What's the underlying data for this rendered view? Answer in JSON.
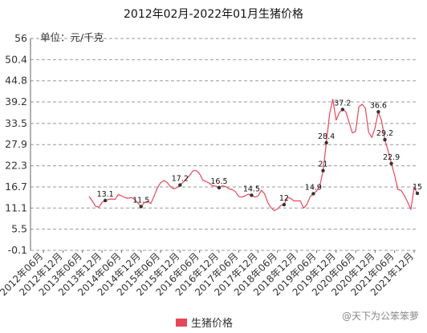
{
  "chart_data": {
    "type": "line",
    "title": "2012年02月-2022年01月生猪价格",
    "unit_label": "单位：元/千克",
    "legend_position": "bottom-center",
    "grid": true,
    "ylim": [
      -0.1,
      56
    ],
    "y_ticks": [
      "56",
      "50.4",
      "44.8",
      "39.2",
      "33.5",
      "27.9",
      "22.3",
      "16.7",
      "11.1",
      "5.5",
      "-0.1"
    ],
    "y_tick_values": [
      56,
      50.4,
      44.8,
      39.2,
      33.5,
      27.9,
      22.3,
      16.7,
      11.1,
      5.5,
      -0.1
    ],
    "x_range": [
      "2012-02",
      "2022-01"
    ],
    "x_ticks": [
      {
        "label": "2012年06月",
        "date": "2012-06"
      },
      {
        "label": "2012年12月",
        "date": "2012-12"
      },
      {
        "label": "2013年06月",
        "date": "2013-06"
      },
      {
        "label": "2013年12月",
        "date": "2013-12"
      },
      {
        "label": "2014年06月",
        "date": "2014-06"
      },
      {
        "label": "2014年12月",
        "date": "2014-12"
      },
      {
        "label": "2015年06月",
        "date": "2015-06"
      },
      {
        "label": "2015年12月",
        "date": "2015-12"
      },
      {
        "label": "2016年06月",
        "date": "2016-06"
      },
      {
        "label": "2016年12月",
        "date": "2016-12"
      },
      {
        "label": "2017年06月",
        "date": "2017-06"
      },
      {
        "label": "2017年12月",
        "date": "2017-12"
      },
      {
        "label": "2018年06月",
        "date": "2018-06"
      },
      {
        "label": "2018年12月",
        "date": "2018-12"
      },
      {
        "label": "2019年06月",
        "date": "2019-06"
      },
      {
        "label": "2019年12月",
        "date": "2019-12"
      },
      {
        "label": "2020年06月",
        "date": "2020-06"
      },
      {
        "label": "2020年12月",
        "date": "2020-12"
      },
      {
        "label": "2021年06月",
        "date": "2021-06"
      },
      {
        "label": "2021年12月",
        "date": "2021-12"
      }
    ],
    "series": [
      {
        "name": "生猪价格",
        "color": "#e8475a",
        "points": [
          [
            "2013-08",
            14.2
          ],
          [
            "2013-09",
            13.0
          ],
          [
            "2013-10",
            11.6
          ],
          [
            "2013-11",
            11.3
          ],
          [
            "2013-12",
            12.6
          ],
          [
            "2014-01",
            13.1
          ],
          [
            "2014-02",
            13.4
          ],
          [
            "2014-03",
            13.5
          ],
          [
            "2014-04",
            13.4
          ],
          [
            "2014-05",
            14.7
          ],
          [
            "2014-06",
            14.3
          ],
          [
            "2014-07",
            13.9
          ],
          [
            "2014-08",
            13.7
          ],
          [
            "2014-09",
            13.9
          ],
          [
            "2014-10",
            13.4
          ],
          [
            "2014-11",
            12.5
          ],
          [
            "2014-12",
            11.5
          ],
          [
            "2015-01",
            12.5
          ],
          [
            "2015-02",
            12.9
          ],
          [
            "2015-03",
            12.3
          ],
          [
            "2015-04",
            14.2
          ],
          [
            "2015-05",
            16.4
          ],
          [
            "2015-06",
            17.8
          ],
          [
            "2015-07",
            18.4
          ],
          [
            "2015-08",
            17.9
          ],
          [
            "2015-09",
            16.8
          ],
          [
            "2015-10",
            16.2
          ],
          [
            "2015-11",
            16.5
          ],
          [
            "2015-12",
            17.2
          ],
          [
            "2016-01",
            18.0
          ],
          [
            "2016-02",
            18.8
          ],
          [
            "2016-03",
            19.8
          ],
          [
            "2016-04",
            21.0
          ],
          [
            "2016-05",
            21.0
          ],
          [
            "2016-06",
            20.2
          ],
          [
            "2016-07",
            18.5
          ],
          [
            "2016-08",
            18.1
          ],
          [
            "2016-09",
            17.7
          ],
          [
            "2016-10",
            17.0
          ],
          [
            "2016-11",
            16.9
          ],
          [
            "2016-12",
            16.5
          ],
          [
            "2017-01",
            17.0
          ],
          [
            "2017-02",
            16.8
          ],
          [
            "2017-03",
            16.2
          ],
          [
            "2017-04",
            16.0
          ],
          [
            "2017-05",
            15.5
          ],
          [
            "2017-06",
            14.2
          ],
          [
            "2017-07",
            14.0
          ],
          [
            "2017-08",
            14.3
          ],
          [
            "2017-09",
            14.8
          ],
          [
            "2017-10",
            14.5
          ],
          [
            "2017-11",
            14.0
          ],
          [
            "2017-12",
            14.3
          ],
          [
            "2018-01",
            15.8
          ],
          [
            "2018-02",
            14.9
          ],
          [
            "2018-03",
            12.5
          ],
          [
            "2018-04",
            11.2
          ],
          [
            "2018-05",
            10.4
          ],
          [
            "2018-06",
            10.9
          ],
          [
            "2018-07",
            11.8
          ],
          [
            "2018-08",
            12.0
          ],
          [
            "2018-09",
            13.9
          ],
          [
            "2018-10",
            13.7
          ],
          [
            "2018-11",
            13.0
          ],
          [
            "2018-12",
            13.0
          ],
          [
            "2019-01",
            13.0
          ],
          [
            "2019-02",
            11.1
          ],
          [
            "2019-03",
            12.0
          ],
          [
            "2019-04",
            14.1
          ],
          [
            "2019-05",
            14.9
          ],
          [
            "2019-06",
            15.6
          ],
          [
            "2019-07",
            17.0
          ],
          [
            "2019-08",
            21.0
          ],
          [
            "2019-09",
            28.4
          ],
          [
            "2019-10",
            36.0
          ],
          [
            "2019-11",
            39.9
          ],
          [
            "2019-12",
            34.4
          ],
          [
            "2020-01",
            36.4
          ],
          [
            "2020-02",
            37.2
          ],
          [
            "2020-03",
            36.6
          ],
          [
            "2020-04",
            33.8
          ],
          [
            "2020-05",
            31.0
          ],
          [
            "2020-06",
            31.4
          ],
          [
            "2020-07",
            37.9
          ],
          [
            "2020-08",
            38.6
          ],
          [
            "2020-09",
            37.6
          ],
          [
            "2020-10",
            31.2
          ],
          [
            "2020-11",
            29.8
          ],
          [
            "2020-12",
            32.4
          ],
          [
            "2021-01",
            36.6
          ],
          [
            "2021-02",
            34.2
          ],
          [
            "2021-03",
            29.2
          ],
          [
            "2021-04",
            26.2
          ],
          [
            "2021-05",
            22.9
          ],
          [
            "2021-06",
            19.8
          ],
          [
            "2021-07",
            16.0
          ],
          [
            "2021-08",
            15.8
          ],
          [
            "2021-09",
            14.4
          ],
          [
            "2021-10",
            12.7
          ],
          [
            "2021-11",
            10.7
          ],
          [
            "2021-12",
            16.5
          ],
          [
            "2022-01",
            15.0
          ]
        ],
        "labeled_points": [
          {
            "date": "2014-01",
            "value": 13.1,
            "label": "13.1"
          },
          {
            "date": "2014-12",
            "value": 11.5,
            "label": "11.5"
          },
          {
            "date": "2015-12",
            "value": 17.2,
            "label": "17.2"
          },
          {
            "date": "2016-12",
            "value": 16.5,
            "label": "16.5"
          },
          {
            "date": "2017-10",
            "value": 14.5,
            "label": "14.5"
          },
          {
            "date": "2018-08",
            "value": 12.0,
            "label": "12"
          },
          {
            "date": "2019-05",
            "value": 14.9,
            "label": "14.9"
          },
          {
            "date": "2019-08",
            "value": 21.0,
            "label": "21"
          },
          {
            "date": "2019-09",
            "value": 28.4,
            "label": "28.4"
          },
          {
            "date": "2020-02",
            "value": 37.2,
            "label": "37.2"
          },
          {
            "date": "2021-01",
            "value": 36.6,
            "label": "36.6"
          },
          {
            "date": "2021-03",
            "value": 29.2,
            "label": "29.2"
          },
          {
            "date": "2021-05",
            "value": 22.9,
            "label": "22.9"
          },
          {
            "date": "2022-01",
            "value": 15.0,
            "label": "15"
          }
        ]
      }
    ]
  },
  "watermark": "@天下为公笨笨萝"
}
